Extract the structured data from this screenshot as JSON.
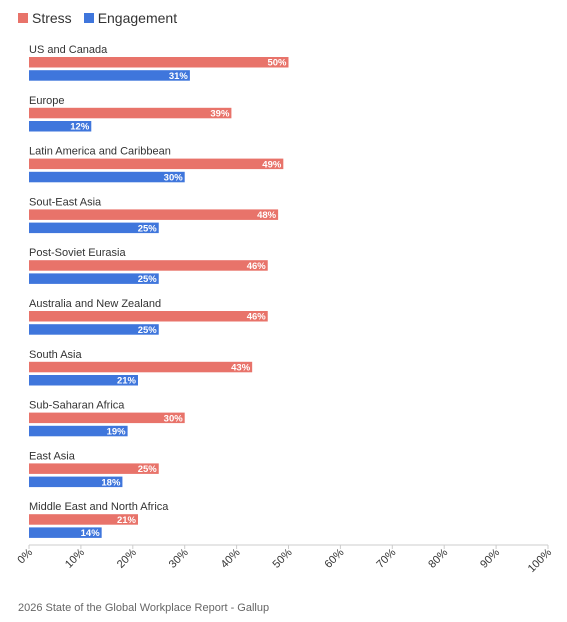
{
  "chart_data": {
    "type": "bar",
    "orientation": "horizontal",
    "categories": [
      "US and Canada",
      "Europe",
      "Latin America and Caribbean",
      "Sout-East Asia",
      "Post-Soviet Eurasia",
      "Australia and New Zealand",
      "South Asia",
      "Sub-Saharan Africa",
      "East Asia",
      "Middle East and North Africa"
    ],
    "series": [
      {
        "name": "Stress",
        "color": "#e8736a",
        "values": [
          50,
          39,
          49,
          48,
          46,
          46,
          43,
          30,
          25,
          21
        ],
        "labels": [
          "50%",
          "39%",
          "49%",
          "48%",
          "46%",
          "46%",
          "43%",
          "30%",
          "25%",
          "21%"
        ]
      },
      {
        "name": "Engagement",
        "color": "#3f76dc",
        "values": [
          31,
          12,
          30,
          25,
          25,
          25,
          21,
          19,
          18,
          14
        ],
        "labels": [
          "31%",
          "12%",
          "30%",
          "25%",
          "25%",
          "25%",
          "21%",
          "19%",
          "18%",
          "14%"
        ]
      }
    ],
    "xlim": [
      0,
      100
    ],
    "x_ticks": [
      "0%",
      "10%",
      "20%",
      "30%",
      "40%",
      "50%",
      "60%",
      "70%",
      "80%",
      "90%",
      "100%"
    ],
    "legend_position": "top-left",
    "grid": false
  },
  "source": "2026 State of the Global Workplace Report - Gallup"
}
